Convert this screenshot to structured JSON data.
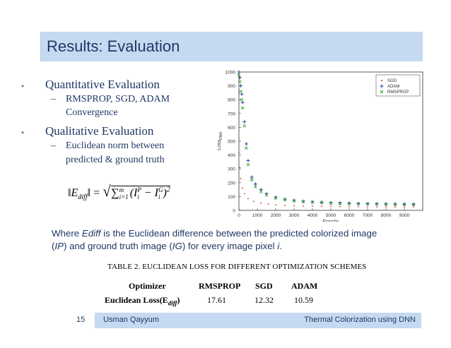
{
  "title": "Results: Evaluation",
  "bullets": {
    "quantitative": "Quantitative Evaluation",
    "quant_sub_1": "RMSPROP, SGD, ADAM",
    "quant_sub_2": "Convergence",
    "qualitative": "Qualitative Evaluation",
    "qual_sub_1": "Euclidean norm between",
    "qual_sub_2": "predicted & ground truth"
  },
  "formula": {
    "lhs": "‖E",
    "lhs_sub": "diff",
    "eq": "‖ = ",
    "sum": "∑",
    "sum_sup": "m",
    "sum_sub": "i=1",
    "body1": "(I",
    "ip_sup": "P",
    "ip_sub": "i",
    "minus": " − I",
    "ig_sup": "G",
    "ig_sub": "i",
    "close": ")",
    "sq": "2"
  },
  "caption": {
    "p1": "Where ",
    "ediff": "Ediff",
    "p2": " is the Euclidean difference between the predicted colorized image (",
    "ip": "IP",
    "p3": ") and ground truth image (",
    "ig": "IG",
    "p4": ") for every image pixel ",
    "i": "i",
    "p5": "."
  },
  "table": {
    "title": "TABLE 2. EUCLIDEAN LOSS FOR DIFFERENT OPTIMIZATION SCHEMES",
    "headers": [
      "Optimizer",
      "RMSPROP",
      "SGD",
      "ADAM"
    ],
    "row_label": "Euclidean Loss(E",
    "row_label_sub": "diff",
    "row_label_end": ")",
    "values": [
      "17.61",
      "12.32",
      "10.59"
    ]
  },
  "footer": {
    "slide_number": "15",
    "author": "Usman Qayyum",
    "talk_title": "Thermal Colorization using DNN"
  },
  "chart_data": {
    "type": "scatter",
    "xlabel": "Epochs",
    "ylabel": "Loss",
    "ylabel_sub": "DNN",
    "xlim": [
      0,
      10000
    ],
    "ylim": [
      0,
      1000
    ],
    "xticks": [
      0,
      1000,
      2000,
      3000,
      4000,
      5000,
      6000,
      7000,
      8000,
      9000
    ],
    "yticks": [
      0,
      100,
      200,
      300,
      400,
      500,
      600,
      700,
      800,
      900,
      1000
    ],
    "legend_position": "top-right",
    "series": [
      {
        "name": "SGD",
        "color": "#d62728",
        "marker": "dot",
        "x": [
          0,
          50,
          100,
          200,
          300,
          500,
          800,
          1200,
          1600,
          2000,
          2500,
          3000,
          3500,
          4000,
          4500,
          5000,
          5500,
          6000,
          6500,
          7000,
          7500,
          8000,
          8500,
          9000,
          9500
        ],
        "y": [
          420,
          310,
          230,
          160,
          120,
          85,
          65,
          52,
          45,
          40,
          36,
          33,
          31,
          30,
          29,
          28,
          27,
          26,
          26,
          25,
          25,
          24,
          24,
          24,
          24
        ]
      },
      {
        "name": "ADAM",
        "color": "#1f3a93",
        "marker": "plus",
        "x": [
          0,
          50,
          100,
          150,
          200,
          300,
          400,
          500,
          700,
          900,
          1200,
          1500,
          2000,
          2500,
          3000,
          3500,
          4000,
          4500,
          5000,
          5500,
          6000,
          6500,
          7000,
          7500,
          8000,
          8500,
          9000,
          9500
        ],
        "y": [
          1000,
          960,
          900,
          840,
          780,
          640,
          480,
          360,
          240,
          190,
          150,
          120,
          95,
          80,
          72,
          66,
          62,
          58,
          55,
          53,
          51,
          49,
          48,
          47,
          46,
          45,
          44,
          44
        ]
      },
      {
        "name": "RMSPROP",
        "color": "#2ca02c",
        "marker": "x",
        "x": [
          0,
          50,
          100,
          150,
          200,
          300,
          400,
          500,
          700,
          900,
          1200,
          1500,
          2000,
          2500,
          3000,
          3500,
          4000,
          4500,
          5000,
          5500,
          6000,
          6500,
          7000,
          7500,
          8000,
          8500,
          9000,
          9500
        ],
        "y": [
          980,
          930,
          860,
          800,
          740,
          610,
          450,
          330,
          220,
          170,
          135,
          110,
          88,
          76,
          68,
          62,
          58,
          55,
          52,
          50,
          48,
          47,
          46,
          45,
          44,
          43,
          43,
          42
        ]
      }
    ]
  }
}
